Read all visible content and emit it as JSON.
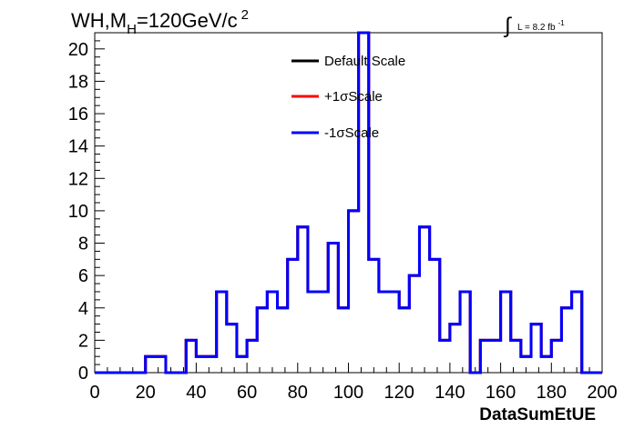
{
  "title": {
    "main": "WH,M",
    "subscript": "H",
    "rest": "=120GeV/c",
    "superscript": "2"
  },
  "lumi": {
    "integral": "∫",
    "text": "L = 8.2 fb",
    "superscript": "-1"
  },
  "chart_data": {
    "type": "line",
    "style": "step-histogram",
    "xlabel": "DataSumEtUE",
    "ylabel": "",
    "xlim": [
      0,
      200
    ],
    "ylim": [
      0,
      21
    ],
    "x_ticks": [
      0,
      20,
      40,
      60,
      80,
      100,
      120,
      140,
      160,
      180,
      200
    ],
    "y_ticks": [
      0,
      2,
      4,
      6,
      8,
      10,
      12,
      14,
      16,
      18,
      20
    ],
    "grid": false,
    "legend_position": "top-center",
    "bin_width": 4,
    "bin_edges_start": 0,
    "series": [
      {
        "name": "Default Scale",
        "color": "#000000"
      },
      {
        "name": "+1σScale",
        "color": "#ff0000"
      },
      {
        "name": "-1σScale",
        "color": "#0000ff"
      }
    ],
    "values": [
      0,
      0,
      0,
      0,
      0,
      1,
      1,
      0,
      0,
      2,
      1,
      1,
      5,
      3,
      1,
      2,
      4,
      5,
      4,
      7,
      9,
      5,
      5,
      8,
      4,
      10,
      22,
      7,
      5,
      5,
      4,
      6,
      9,
      7,
      2,
      3,
      5,
      0,
      2,
      2,
      5,
      2,
      1,
      3,
      1,
      2,
      4,
      5,
      0,
      0
    ]
  }
}
